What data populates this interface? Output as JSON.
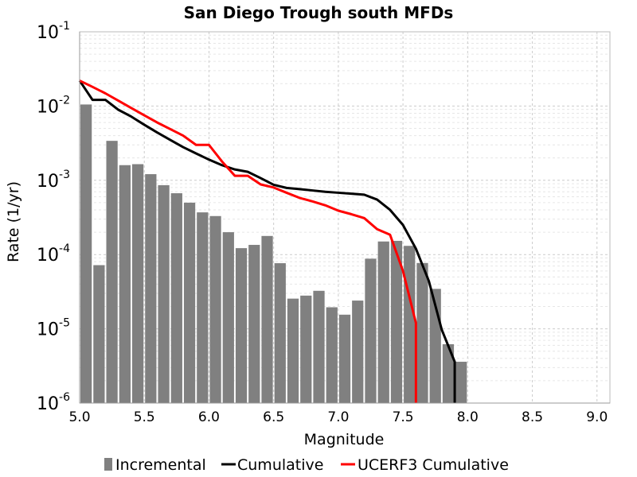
{
  "chart_data": {
    "type": "bar",
    "title": "San Diego Trough south MFDs",
    "xlabel": "Magnitude",
    "ylabel": "Rate (1/yr)",
    "xlim": [
      5.0,
      9.1
    ],
    "ylim": [
      1e-06,
      0.1
    ],
    "yscale": "log",
    "grid": true,
    "legend_position": "bottom",
    "xticks": [
      "5.0",
      "5.5",
      "6.0",
      "6.5",
      "7.0",
      "7.5",
      "8.0",
      "8.5",
      "9.0"
    ],
    "yticks": [
      {
        "base": "10",
        "exp": "-6"
      },
      {
        "base": "10",
        "exp": "-5"
      },
      {
        "base": "10",
        "exp": "-4"
      },
      {
        "base": "10",
        "exp": "-3"
      },
      {
        "base": "10",
        "exp": "-2"
      },
      {
        "base": "10",
        "exp": "-1"
      }
    ],
    "series": [
      {
        "name": "Incremental",
        "type": "bar",
        "color": "#808080",
        "x": [
          5.05,
          5.15,
          5.25,
          5.35,
          5.45,
          5.55,
          5.65,
          5.75,
          5.85,
          5.95,
          6.05,
          6.15,
          6.25,
          6.35,
          6.45,
          6.55,
          6.65,
          6.75,
          6.85,
          6.95,
          7.05,
          7.15,
          7.25,
          7.35,
          7.45,
          7.55,
          7.65,
          7.75,
          7.85,
          7.95
        ],
        "values": [
          0.0105,
          7.2e-05,
          0.0034,
          0.0016,
          0.00165,
          0.00121,
          0.00086,
          0.00067,
          0.0005,
          0.00037,
          0.00033,
          0.0002,
          0.000122,
          0.000135,
          0.000178,
          7.65e-05,
          2.55e-05,
          2.8e-05,
          3.25e-05,
          1.95e-05,
          1.55e-05,
          2.4e-05,
          8.8e-05,
          0.00015,
          0.000153,
          0.000131,
          7.7e-05,
          3.45e-05,
          6.2e-06,
          3.6e-06
        ]
      },
      {
        "name": "Cumulative",
        "type": "line",
        "color": "#000000",
        "x": [
          5.0,
          5.1,
          5.2,
          5.3,
          5.4,
          5.5,
          5.6,
          5.7,
          5.8,
          5.9,
          6.0,
          6.1,
          6.2,
          6.3,
          6.4,
          6.5,
          6.6,
          6.7,
          6.8,
          6.9,
          7.0,
          7.1,
          7.2,
          7.3,
          7.4,
          7.5,
          7.6,
          7.7,
          7.8,
          7.9,
          7.9
        ],
        "values": [
          0.022,
          0.0121,
          0.0121,
          0.0089,
          0.0072,
          0.0056,
          0.0044,
          0.0035,
          0.0028,
          0.0023,
          0.0019,
          0.0016,
          0.0014,
          0.0013,
          0.00107,
          0.00087,
          0.00079,
          0.00076,
          0.00073,
          0.0007,
          0.00068,
          0.00066,
          0.00064,
          0.00055,
          0.0004,
          0.00025,
          0.00012,
          4.4e-05,
          9.7e-06,
          3.6e-06,
          1e-06
        ]
      },
      {
        "name": "UCERF3 Cumulative",
        "type": "line",
        "color": "#ff0000",
        "x": [
          5.0,
          5.1,
          5.2,
          5.3,
          5.4,
          5.5,
          5.6,
          5.7,
          5.8,
          5.9,
          6.0,
          6.1,
          6.2,
          6.3,
          6.4,
          6.5,
          6.6,
          6.7,
          6.8,
          6.9,
          7.0,
          7.1,
          7.2,
          7.3,
          7.4,
          7.5,
          7.6,
          7.6
        ],
        "values": [
          0.022,
          0.0181,
          0.0148,
          0.0118,
          0.0094,
          0.0075,
          0.006,
          0.0049,
          0.004,
          0.003,
          0.003,
          0.0018,
          0.00115,
          0.00115,
          0.00088,
          0.0008,
          0.00068,
          0.00058,
          0.00052,
          0.00046,
          0.00039,
          0.00035,
          0.00031,
          0.00022,
          0.000185,
          6e-05,
          1.2e-05,
          1e-06
        ]
      }
    ]
  }
}
